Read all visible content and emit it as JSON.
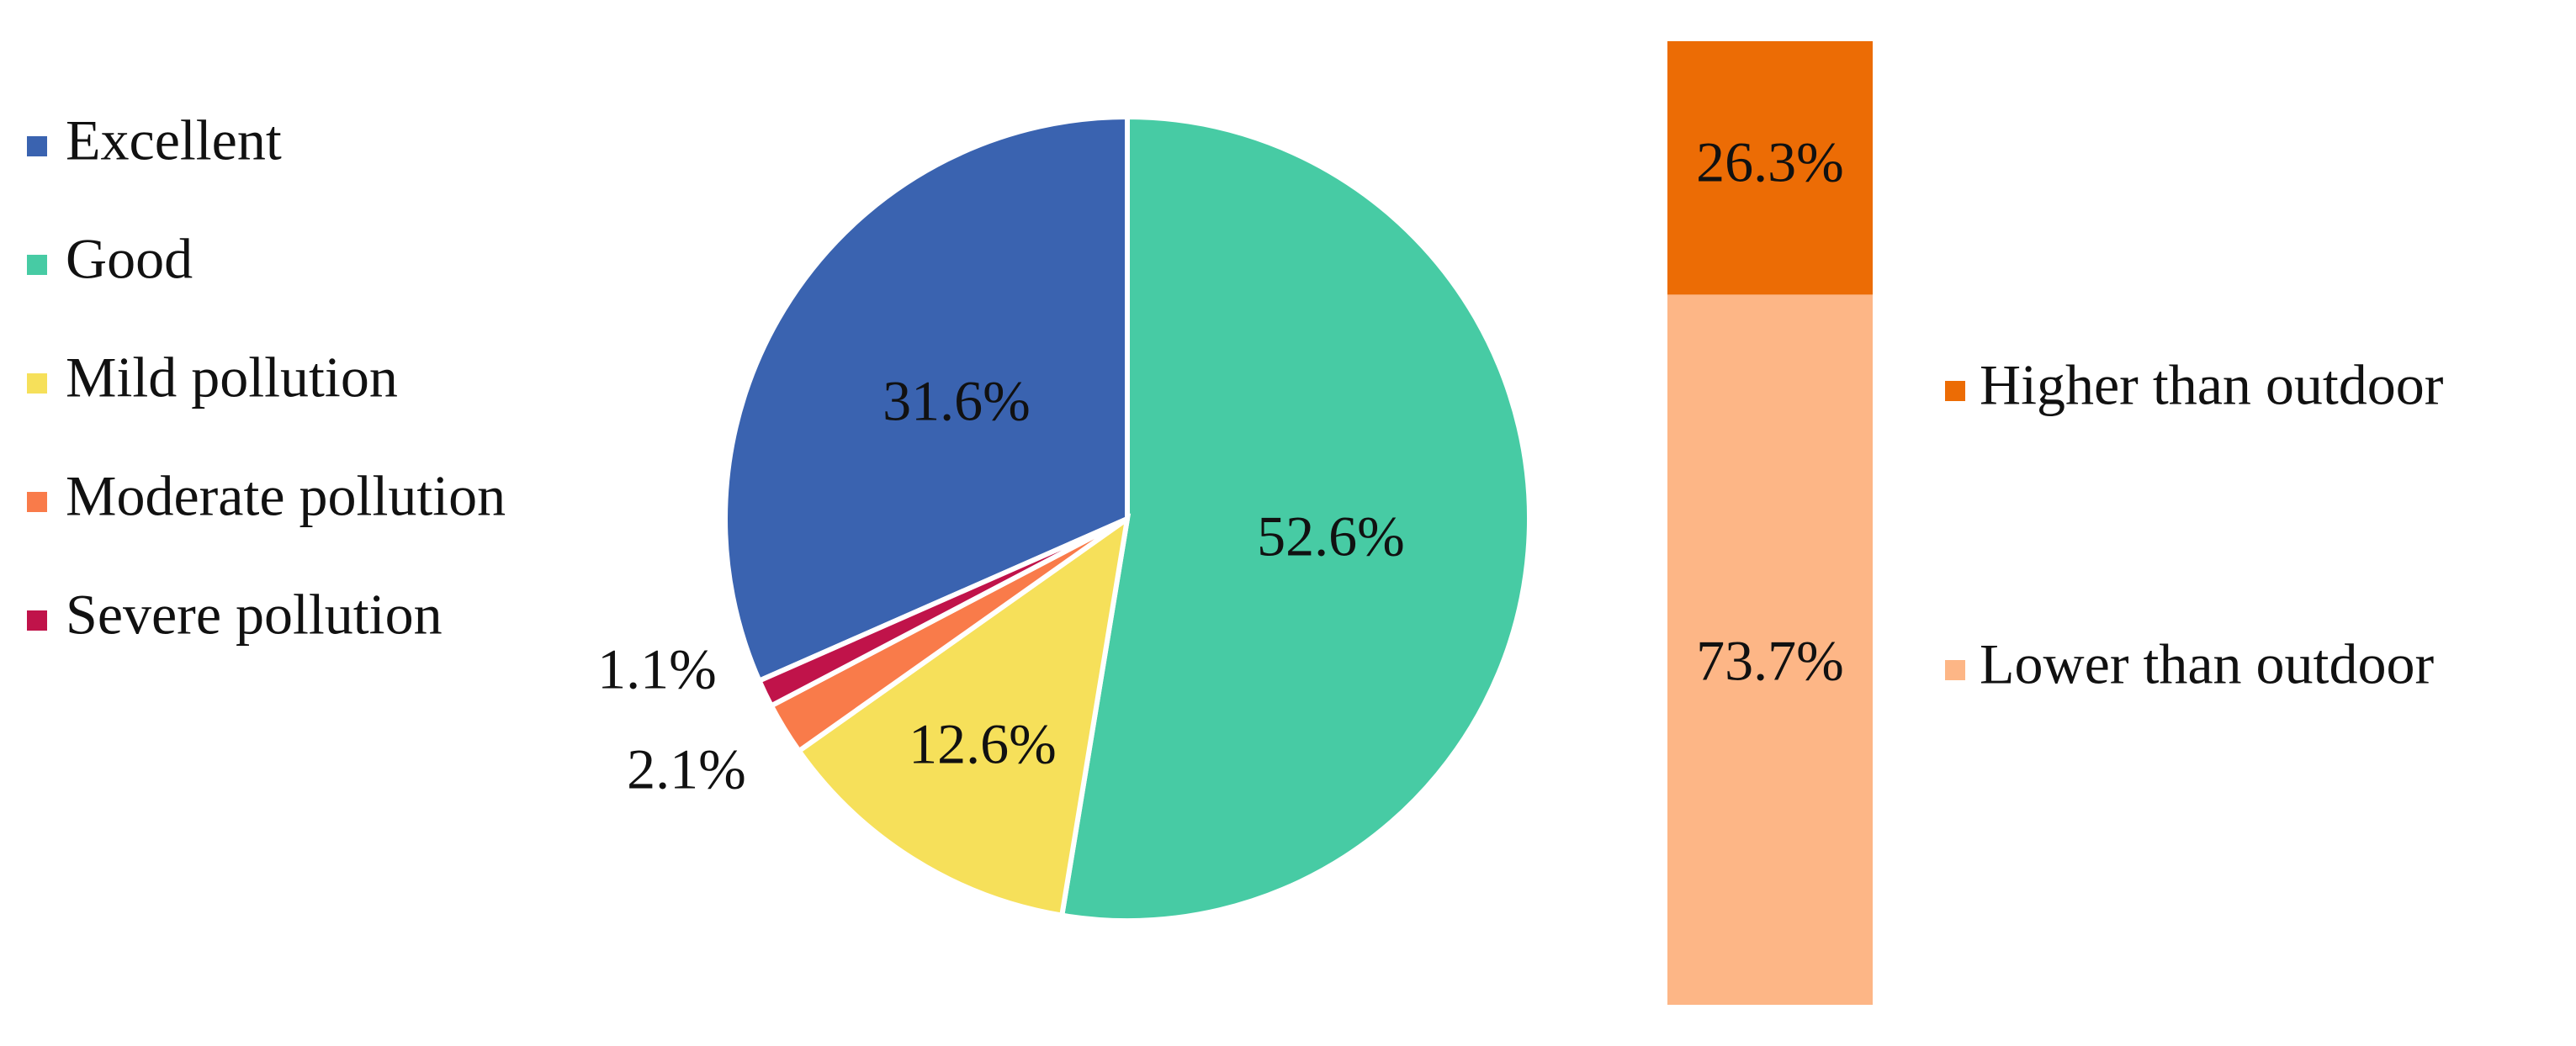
{
  "chart_data": [
    {
      "type": "pie",
      "categories": [
        "Excellent",
        "Good",
        "Mild pollution",
        "Moderate pollution",
        "Severe pollution"
      ],
      "values": [
        31.6,
        52.6,
        12.6,
        2.1,
        1.1
      ],
      "value_labels": [
        "31.6%",
        "52.6%",
        "12.6%",
        "2.1%",
        "1.1%"
      ],
      "colors": [
        "#3a63b0",
        "#47cba4",
        "#f6e05a",
        "#f97b4a",
        "#c0134a"
      ],
      "legend": "left"
    },
    {
      "type": "bar",
      "stacked": true,
      "categories": [
        null
      ],
      "series": [
        {
          "name": "Lower than outdoor",
          "color": "#fdb686",
          "values": [
            73.7
          ],
          "value_labels": [
            "73.7%"
          ]
        },
        {
          "name": "Higher than outdoor",
          "color": "#ec6c05",
          "values": [
            26.3
          ],
          "value_labels": [
            "26.3%"
          ]
        }
      ],
      "legend": "right"
    }
  ]
}
